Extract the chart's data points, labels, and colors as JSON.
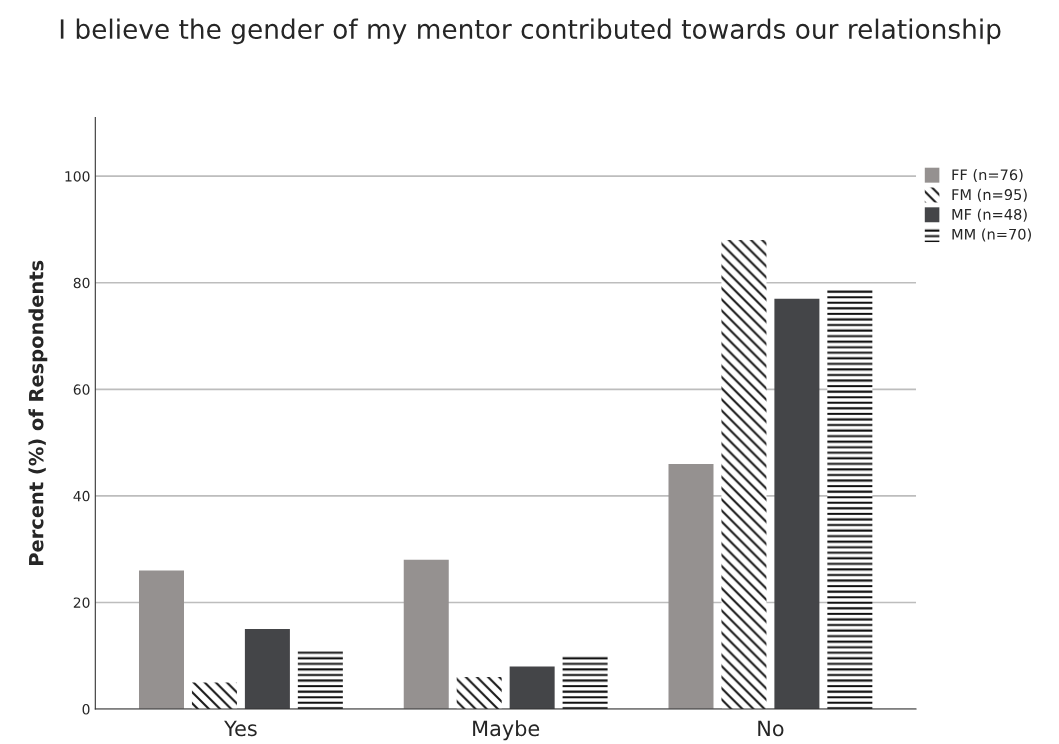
{
  "chart_data": {
    "type": "bar",
    "title": "I believe the gender of my mentor contributed towards our relationship",
    "ylabel": "Percent (%) of Respondents",
    "categories": [
      "Yes",
      "Maybe",
      "No"
    ],
    "series": [
      {
        "name": "FF (n=76)",
        "color": "#959190",
        "values": [
          26,
          28,
          46
        ]
      },
      {
        "name": "FM (n=95)",
        "color": "#1a1a1a",
        "values": [
          5,
          6,
          88
        ]
      },
      {
        "name": "MF (n=48)",
        "color": "#444548",
        "values": [
          15,
          8,
          77
        ]
      },
      {
        "name": "MM (n=70)",
        "color": "#111111",
        "values": [
          11,
          10,
          79
        ]
      }
    ],
    "ylim": [
      0,
      111
    ],
    "yticks": [
      0,
      20,
      40,
      60,
      80,
      100
    ],
    "grid": "y",
    "legend": "top right"
  }
}
